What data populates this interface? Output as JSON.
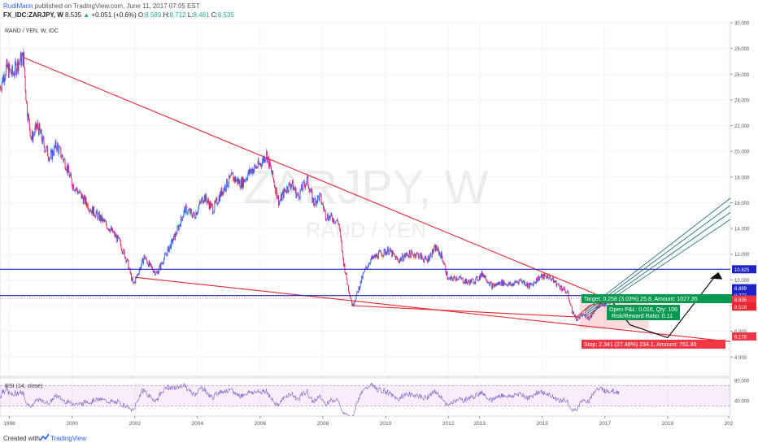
{
  "header": {
    "author": "RudiMarin",
    "published": "published on TradingView.com, June 11, 2017 07:05 EST",
    "symbol": "FX_IDC:ZARJPY, W",
    "last": "8.535",
    "change": "+0.051 (+0.6%)",
    "open_label": "O:",
    "open": "8.589",
    "high_label": "H:",
    "high": "8.712",
    "low_label": "L:",
    "low": "8.481",
    "close_label": "C:",
    "close": "8.535"
  },
  "footer": {
    "created_with": "Created with",
    "brand": "TradingView"
  },
  "chart_data": {
    "type": "candlestick",
    "pane_title": "RAND / YEN, W, IDC",
    "watermark_symbol": "ZARJPY, W",
    "watermark_name": "RAND / YEN",
    "x_ticks": [
      "1998",
      "2000",
      "2002",
      "2004",
      "2006",
      "2008",
      "2010",
      "2012",
      "2013",
      "2015",
      "2017",
      "2019",
      "202"
    ],
    "y_ticks": [
      "4.000",
      "6.000",
      "8.000",
      "10.000",
      "12.000",
      "14.000",
      "16.000",
      "18.000",
      "20.000",
      "22.000",
      "24.000",
      "26.000",
      "28.000",
      "30.000"
    ],
    "ylim": [
      2.5,
      30
    ],
    "xlim": [
      1997.7,
      2021.0
    ],
    "price_series": [
      [
        1997.7,
        25.0
      ],
      [
        1997.9,
        26.5
      ],
      [
        1998.1,
        26.0
      ],
      [
        1998.3,
        27.0
      ],
      [
        1998.45,
        27.3
      ],
      [
        1998.55,
        23.5
      ],
      [
        1998.7,
        21.0
      ],
      [
        1998.9,
        22.0
      ],
      [
        1999.1,
        20.5
      ],
      [
        1999.3,
        19.5
      ],
      [
        1999.5,
        20.5
      ],
      [
        1999.8,
        19.0
      ],
      [
        2000.0,
        17.5
      ],
      [
        2000.3,
        16.5
      ],
      [
        2000.6,
        15.5
      ],
      [
        2000.9,
        14.8
      ],
      [
        2001.2,
        14.0
      ],
      [
        2001.5,
        13.0
      ],
      [
        2001.75,
        11.5
      ],
      [
        2001.95,
        9.6
      ],
      [
        2002.1,
        10.5
      ],
      [
        2002.3,
        11.8
      ],
      [
        2002.5,
        11.0
      ],
      [
        2002.7,
        10.5
      ],
      [
        2003.0,
        12.0
      ],
      [
        2003.3,
        13.5
      ],
      [
        2003.6,
        15.5
      ],
      [
        2003.9,
        15.0
      ],
      [
        2004.2,
        16.5
      ],
      [
        2004.5,
        15.5
      ],
      [
        2004.8,
        17.0
      ],
      [
        2005.1,
        18.0
      ],
      [
        2005.4,
        17.5
      ],
      [
        2005.7,
        18.5
      ],
      [
        2006.0,
        19.0
      ],
      [
        2006.2,
        19.8
      ],
      [
        2006.4,
        18.0
      ],
      [
        2006.6,
        16.0
      ],
      [
        2006.8,
        17.0
      ],
      [
        2007.0,
        17.5
      ],
      [
        2007.2,
        16.5
      ],
      [
        2007.5,
        17.8
      ],
      [
        2007.7,
        16.0
      ],
      [
        2007.9,
        16.5
      ],
      [
        2008.1,
        15.0
      ],
      [
        2008.3,
        14.8
      ],
      [
        2008.5,
        14.5
      ],
      [
        2008.65,
        11.5
      ],
      [
        2008.8,
        9.5
      ],
      [
        2008.95,
        8.0
      ],
      [
        2009.1,
        9.0
      ],
      [
        2009.3,
        10.5
      ],
      [
        2009.5,
        11.5
      ],
      [
        2009.8,
        12.0
      ],
      [
        2010.1,
        12.3
      ],
      [
        2010.4,
        11.5
      ],
      [
        2010.7,
        12.0
      ],
      [
        2011.0,
        12.0
      ],
      [
        2011.3,
        11.5
      ],
      [
        2011.6,
        12.5
      ],
      [
        2011.8,
        11.8
      ],
      [
        2012.0,
        10.0
      ],
      [
        2012.3,
        10.2
      ],
      [
        2012.6,
        9.8
      ],
      [
        2012.9,
        10.0
      ],
      [
        2013.1,
        10.5
      ],
      [
        2013.4,
        9.5
      ],
      [
        2013.7,
        9.8
      ],
      [
        2014.0,
        9.6
      ],
      [
        2014.3,
        10.0
      ],
      [
        2014.6,
        9.5
      ],
      [
        2014.9,
        10.2
      ],
      [
        2015.2,
        10.3
      ],
      [
        2015.5,
        9.6
      ],
      [
        2015.8,
        9.0
      ],
      [
        2015.95,
        7.6
      ],
      [
        2016.1,
        6.9
      ],
      [
        2016.3,
        7.3
      ],
      [
        2016.5,
        7.0
      ],
      [
        2016.7,
        7.8
      ],
      [
        2016.9,
        8.0
      ],
      [
        2017.1,
        8.3
      ],
      [
        2017.3,
        8.5
      ],
      [
        2017.45,
        8.54
      ]
    ],
    "trendlines": [
      {
        "from": [
          1998.45,
          27.3
        ],
        "to": [
          2016.7,
          8.9
        ]
      },
      {
        "from": [
          2002.0,
          10.2
        ],
        "to": [
          2021.0,
          5.2
        ]
      },
      {
        "from": [
          2008.9,
          8.0
        ],
        "to": [
          2016.2,
          7.1
        ]
      }
    ],
    "horizontal_levels": [
      10.825,
      8.777
    ],
    "price_labels": [
      "10.825",
      "8.899",
      "8.777",
      "8.535",
      "8.519",
      "6.178"
    ],
    "position_tool": {
      "target": "Target: 0.258 (3.03%) 25.8, Amount: 1027.35",
      "open_pl": "Open P&L: 0.016, Qty: 106",
      "risk_reward": "Risk/Reward Ratio: 0.11",
      "stop": "Stop: 2.341 (27.48%) 234.1, Amount: 751.85"
    },
    "rsi": {
      "title": "RSI (14, close)",
      "y_ticks": [
        "40.000",
        "80.000"
      ],
      "band": [
        30,
        70
      ],
      "ylim": [
        10,
        85
      ]
    }
  }
}
